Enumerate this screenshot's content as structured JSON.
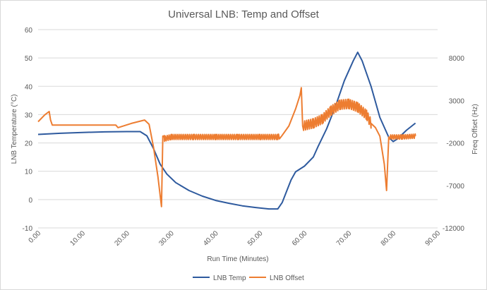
{
  "chart_data": {
    "type": "line",
    "title": "Universal LNB: Temp and Offset",
    "xlabel": "Run Time (Minutes)",
    "ylabel": "LNB Temperature (°C)",
    "y2label": "Freq Offset (Hz)",
    "xlim": [
      0,
      90
    ],
    "ylim": [
      -10,
      60
    ],
    "y2lim": [
      -12000,
      11333
    ],
    "x_ticks": [
      "0.00",
      "10.00",
      "20.00",
      "30.00",
      "40.00",
      "50.00",
      "60.00",
      "70.00",
      "80.00",
      "90.00"
    ],
    "y_ticks": [
      "-10",
      "0",
      "10",
      "20",
      "30",
      "40",
      "50",
      "60"
    ],
    "y2_ticks": [
      "-12000",
      "-7000",
      "-2000",
      "3000",
      "8000"
    ],
    "grid": "horizontal",
    "legend": "bottom",
    "series": [
      {
        "name": "LNB Temp",
        "axis": "left",
        "color": "#2e5a9e",
        "points": [
          [
            0,
            23.0
          ],
          [
            5,
            23.4
          ],
          [
            10,
            23.7
          ],
          [
            15,
            23.9
          ],
          [
            20,
            24.0
          ],
          [
            23,
            24.0
          ],
          [
            24.5,
            22.5
          ],
          [
            26,
            18.0
          ],
          [
            27.5,
            12.5
          ],
          [
            29,
            9.0
          ],
          [
            31,
            6.0
          ],
          [
            34,
            3.2
          ],
          [
            37,
            1.2
          ],
          [
            40,
            -0.3
          ],
          [
            43,
            -1.3
          ],
          [
            46,
            -2.2
          ],
          [
            49,
            -2.8
          ],
          [
            52,
            -3.3
          ],
          [
            54,
            -3.3
          ],
          [
            55,
            -1.0
          ],
          [
            56,
            3.0
          ],
          [
            57,
            7.0
          ],
          [
            58,
            9.8
          ],
          [
            60,
            11.8
          ],
          [
            62,
            15.0
          ],
          [
            63,
            18.5
          ],
          [
            65,
            25.0
          ],
          [
            67,
            33.0
          ],
          [
            69,
            42.0
          ],
          [
            71,
            49.0
          ],
          [
            72,
            52.0
          ],
          [
            73,
            49.0
          ],
          [
            75,
            40.0
          ],
          [
            77,
            29.0
          ],
          [
            79,
            22.0
          ],
          [
            80,
            20.5
          ],
          [
            81,
            21.5
          ],
          [
            83,
            24.5
          ],
          [
            85,
            27.0
          ]
        ]
      },
      {
        "name": "LNB Offset",
        "axis": "right",
        "color": "#ed7d31",
        "points": [
          [
            0,
            500
          ],
          [
            1.5,
            1300
          ],
          [
            2.5,
            1700
          ],
          [
            2.8,
            700
          ],
          [
            3.2,
            100
          ],
          [
            10,
            100
          ],
          [
            17.5,
            100
          ],
          [
            18,
            -200
          ],
          [
            21,
            300
          ],
          [
            24,
            700
          ],
          [
            25,
            200
          ],
          [
            26,
            -2500
          ],
          [
            27,
            -6000
          ],
          [
            27.8,
            -9500
          ],
          [
            28.1,
            -1200
          ],
          [
            28.5,
            -1500
          ],
          [
            30,
            -1300
          ],
          [
            35,
            -1300
          ],
          [
            40,
            -1300
          ],
          [
            45,
            -1300
          ],
          [
            50,
            -1300
          ],
          [
            54,
            -1300
          ],
          [
            55,
            -1100
          ],
          [
            56.5,
            0
          ],
          [
            58,
            2000
          ],
          [
            59,
            3600
          ],
          [
            59.3,
            4500
          ],
          [
            59.6,
            0
          ],
          [
            62,
            300
          ],
          [
            64,
            800
          ],
          [
            66,
            1800
          ],
          [
            68,
            2500
          ],
          [
            70,
            2600
          ],
          [
            72,
            2200
          ],
          [
            74,
            1300
          ],
          [
            75,
            300
          ],
          [
            76,
            -200
          ],
          [
            77,
            -1200
          ],
          [
            78,
            -4500
          ],
          [
            78.5,
            -7600
          ],
          [
            79,
            -1300
          ],
          [
            82,
            -1300
          ],
          [
            85,
            -1200
          ]
        ],
        "noise_regions": [
          [
            28.2,
            54.5,
            600
          ],
          [
            59.6,
            75,
            1100
          ],
          [
            79,
            85,
            500
          ]
        ]
      }
    ]
  }
}
